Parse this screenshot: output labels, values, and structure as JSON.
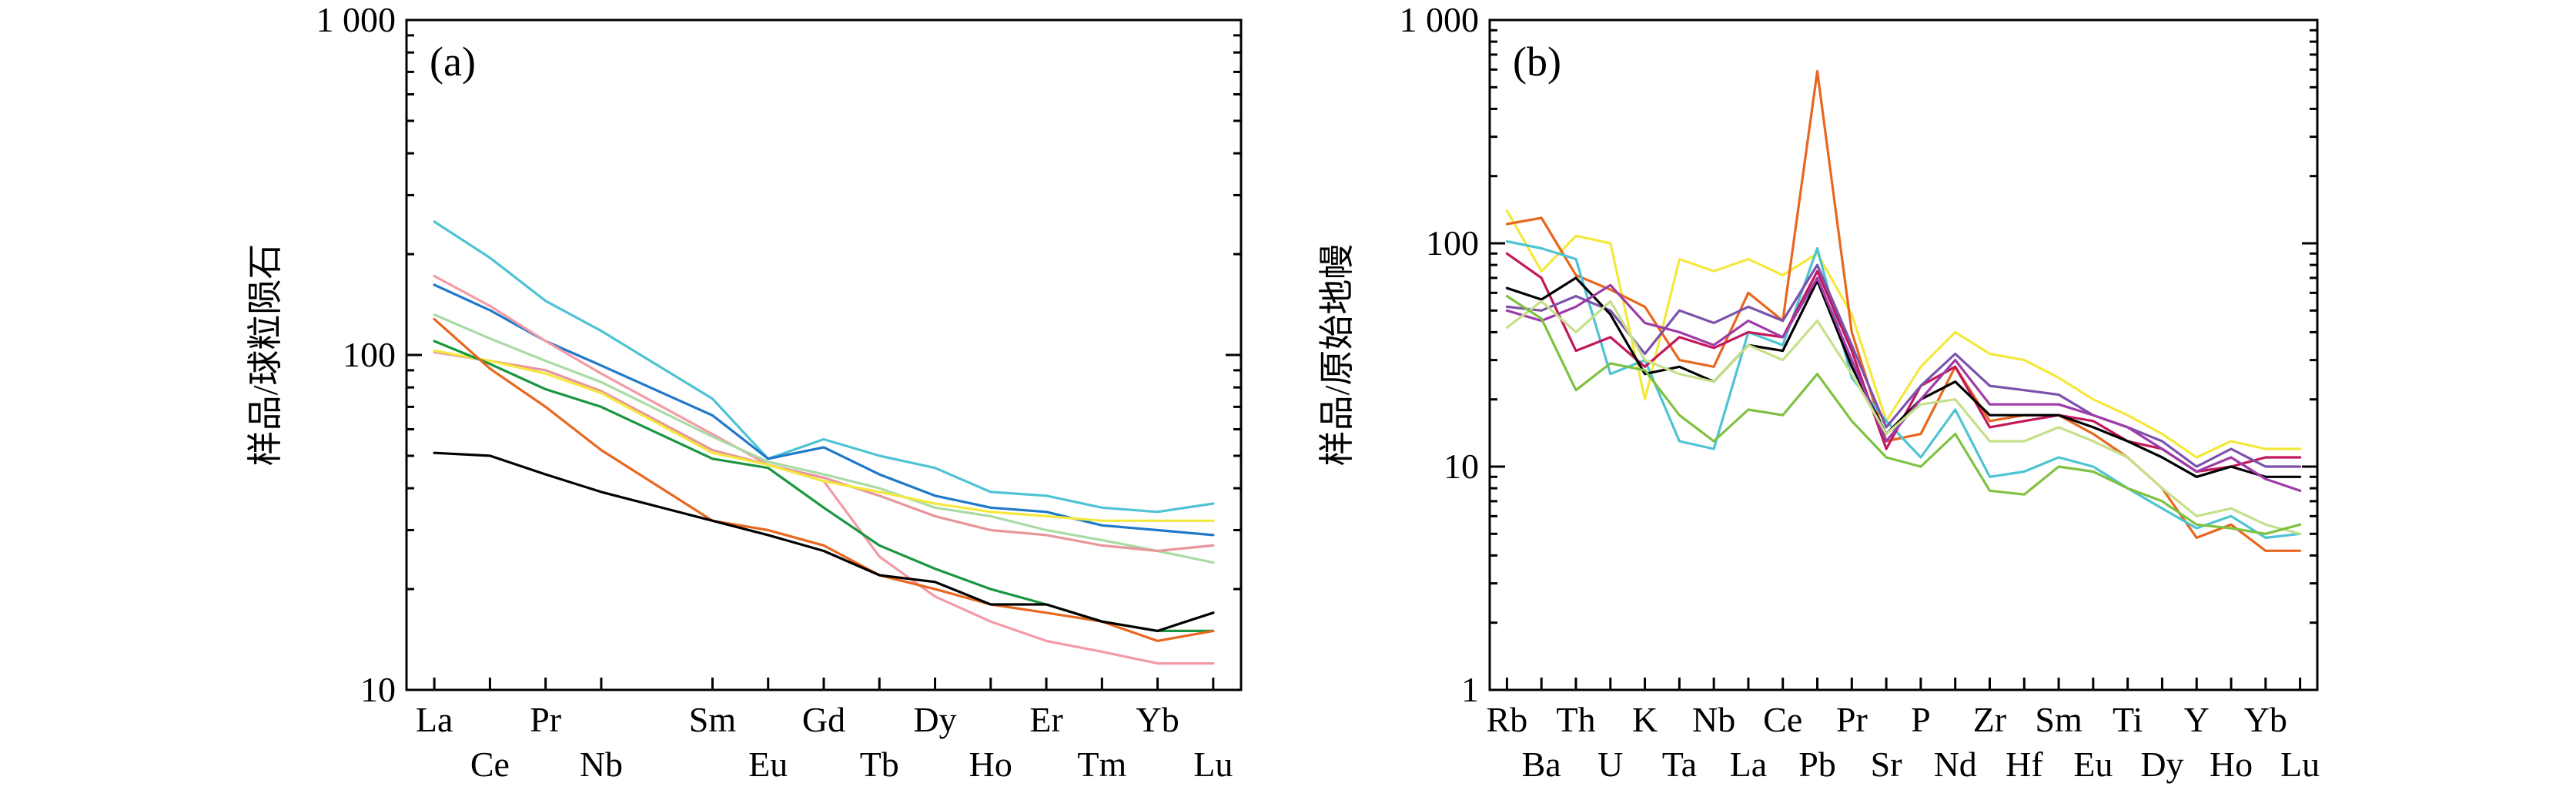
{
  "chart_data": [
    {
      "type": "line",
      "panel_label": "(a)",
      "ylabel": "样品/球粒陨石",
      "yscale": "log",
      "ylim": [
        10,
        1000
      ],
      "yticks": [
        10,
        100,
        1000
      ],
      "ytick_labels": [
        "10",
        "100",
        "1 000"
      ],
      "categories": [
        "La",
        "Ce",
        "Pr",
        "Nb",
        "Sm",
        "Eu",
        "Gd",
        "Tb",
        "Dy",
        "Ho",
        "Er",
        "Tm",
        "Yb",
        "Lu"
      ],
      "x": [
        1,
        2,
        3,
        4,
        6,
        7,
        8,
        9,
        10,
        11,
        12,
        13,
        14,
        15
      ],
      "xlim": [
        0.5,
        15.5
      ],
      "grid": false,
      "series": [
        {
          "color": "#4ec3d4",
          "values": [
            250,
            195,
            145,
            118,
            74,
            49,
            56,
            50,
            46,
            39,
            38,
            35,
            34,
            36
          ]
        },
        {
          "color": "#1f78c8",
          "values": [
            162,
            136,
            110,
            93,
            66,
            49,
            53,
            44,
            38,
            35,
            34,
            31,
            30,
            29
          ]
        },
        {
          "color": "#f49aa6",
          "values": [
            172,
            140,
            110,
            88,
            58,
            47,
            42,
            25,
            19,
            16,
            14,
            13,
            12,
            12
          ]
        },
        {
          "color": "#a9dba5",
          "values": [
            132,
            112,
            96,
            83,
            57,
            48,
            44,
            40,
            35,
            33,
            30,
            28,
            26,
            24
          ]
        },
        {
          "color": "#e8969b",
          "values": [
            102,
            96,
            90,
            78,
            52,
            47,
            43,
            38,
            33,
            30,
            29,
            27,
            26,
            27
          ]
        },
        {
          "color": "#f5e83c",
          "values": [
            103,
            96,
            88,
            77,
            51,
            47,
            42,
            39,
            36,
            34,
            33,
            32,
            32,
            32
          ]
        },
        {
          "color": "#1a9641",
          "values": [
            110,
            94,
            79,
            70,
            49,
            46,
            35,
            27,
            23,
            20,
            18,
            16,
            15,
            15
          ]
        },
        {
          "color": "#e8671e",
          "values": [
            128,
            91,
            70,
            52,
            32,
            30,
            27,
            22,
            20,
            18,
            17,
            16,
            14,
            15
          ]
        },
        {
          "color": "#000000",
          "values": [
            51,
            50,
            44,
            39,
            32,
            29,
            26,
            22,
            21,
            18,
            18,
            16,
            15,
            17
          ]
        }
      ]
    },
    {
      "type": "line",
      "panel_label": "(b)",
      "ylabel": "样品/原始地幔",
      "yscale": "log",
      "ylim": [
        1,
        1000
      ],
      "yticks": [
        1,
        10,
        100,
        1000
      ],
      "ytick_labels": [
        "1",
        "10",
        "100",
        "1 000"
      ],
      "categories": [
        "Rb",
        "Ba",
        "Th",
        "U",
        "K",
        "Ta",
        "Nb",
        "La",
        "Ce",
        "Pb",
        "Pr",
        "Sr",
        "P",
        "Nd",
        "Zr",
        "Hf",
        "Sm",
        "Eu",
        "Ti",
        "Dy",
        "Y",
        "Ho",
        "Yb",
        "Lu"
      ],
      "x": [
        1,
        2,
        3,
        4,
        5,
        6,
        7,
        8,
        9,
        10,
        11,
        12,
        13,
        14,
        15,
        16,
        17,
        18,
        19,
        20,
        21,
        22,
        23,
        24
      ],
      "xlim": [
        0.5,
        24.5
      ],
      "grid": false,
      "series": [
        {
          "color": "#f5e83c",
          "values": [
            140,
            75,
            108,
            100,
            20,
            85,
            75,
            85,
            72,
            90,
            48,
            16,
            28,
            40,
            32,
            30,
            25,
            20,
            17,
            14,
            11,
            13,
            12,
            12
          ]
        },
        {
          "color": "#e8671e",
          "values": [
            122,
            130,
            72,
            62,
            52,
            30,
            28,
            60,
            45,
            590,
            40,
            13,
            14,
            28,
            16,
            17,
            17,
            14,
            11,
            8,
            4.8,
            5.5,
            4.2,
            4.2
          ]
        },
        {
          "color": "#4ec3d4",
          "values": [
            102,
            95,
            85,
            26,
            30,
            13,
            12,
            40,
            35,
            95,
            25,
            16,
            11,
            18,
            9,
            9.5,
            11,
            10,
            8,
            6.5,
            5.3,
            6,
            4.8,
            5
          ]
        },
        {
          "color": "#c2185b",
          "values": [
            90,
            70,
            33,
            38,
            28,
            38,
            34,
            40,
            38,
            75,
            33,
            12,
            23,
            28,
            15,
            16,
            17,
            16,
            13,
            12,
            9.5,
            10,
            11,
            11
          ]
        },
        {
          "color": "#7b52ab",
          "values": [
            52,
            50,
            58,
            50,
            32,
            50,
            44,
            52,
            45,
            80,
            35,
            15,
            23,
            32,
            23,
            22,
            21,
            17,
            15,
            13,
            10,
            12,
            10,
            10
          ]
        },
        {
          "color": "#000000",
          "values": [
            63,
            56,
            70,
            48,
            26,
            28,
            24,
            35,
            33,
            68,
            28,
            14,
            20,
            24,
            17,
            17,
            17,
            15,
            13,
            11,
            9,
            10,
            9,
            9
          ]
        },
        {
          "color": "#9e3ba8",
          "values": [
            50,
            45,
            52,
            65,
            44,
            40,
            35,
            45,
            38,
            70,
            30,
            13,
            20,
            30,
            19,
            19,
            19,
            17,
            15,
            12,
            9.5,
            11,
            8.8,
            7.8
          ]
        },
        {
          "color": "#c5e08a",
          "values": [
            42,
            55,
            40,
            55,
            30,
            26,
            24,
            35,
            30,
            45,
            26,
            14,
            19,
            20,
            13,
            13,
            15,
            13,
            11,
            8,
            6,
            6.5,
            5.5,
            5
          ]
        },
        {
          "color": "#7fc241",
          "values": [
            58,
            46,
            22,
            29,
            27,
            17,
            13,
            18,
            17,
            26,
            16,
            11,
            10,
            14,
            7.8,
            7.5,
            10,
            9.5,
            8,
            7,
            5.5,
            5.3,
            5,
            5.5
          ]
        }
      ]
    }
  ]
}
